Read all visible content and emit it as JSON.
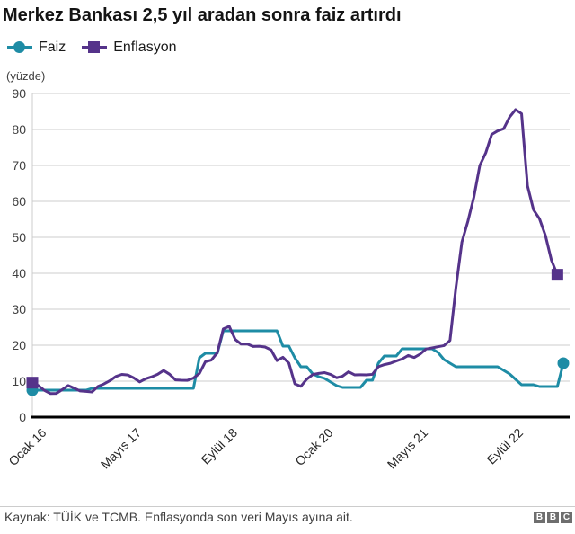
{
  "title": "Merkez Bankası 2,5 yıl aradan sonra faiz artırdı",
  "footer": {
    "source": "Kaynak: TÜİK ve TCMB. Enflasyonda son veri Mayıs ayına ait.",
    "logo": [
      "B",
      "B",
      "C"
    ]
  },
  "chart_data": {
    "type": "line",
    "title": "Merkez Bankası 2,5 yıl aradan sonra faiz artırdı",
    "ylabel": "(yüzde)",
    "xlabel": "",
    "ylim": [
      0,
      90
    ],
    "yticks": [
      0,
      10,
      20,
      30,
      40,
      50,
      60,
      70,
      80,
      90
    ],
    "grid": true,
    "grid_color": "#cccccc",
    "axis_color": "#000000",
    "legend_position": "top-left",
    "x_unit": "months from Ocak 2016 (index 0) to Haziran 2023 (index 89)",
    "xticks": [
      {
        "label": "Ocak 16",
        "month": 0
      },
      {
        "label": "Mayıs 17",
        "month": 16
      },
      {
        "label": "Eylül 18",
        "month": 32
      },
      {
        "label": "Ocak 20",
        "month": 48
      },
      {
        "label": "Mayıs 21",
        "month": 64
      },
      {
        "label": "Eylül 22",
        "month": 80
      }
    ],
    "series": [
      {
        "name": "Faiz",
        "color": "#1e8ca5",
        "marker": "circle",
        "values": [
          7.5,
          7.5,
          7.5,
          7.5,
          7.5,
          7.5,
          7.5,
          7.5,
          7.5,
          7.5,
          8,
          8,
          8,
          8,
          8,
          8,
          8,
          8,
          8,
          8,
          8,
          8,
          8,
          8,
          8,
          8,
          8,
          8,
          16.5,
          17.75,
          17.75,
          17.75,
          24,
          24,
          24,
          24,
          24,
          24,
          24,
          24,
          24,
          24,
          19.75,
          19.75,
          16.5,
          14,
          14,
          12,
          11.25,
          10.75,
          9.75,
          8.75,
          8.25,
          8.25,
          8.25,
          8.25,
          10.25,
          10.25,
          15,
          17,
          17,
          17,
          19,
          19,
          19,
          19,
          19,
          19,
          18,
          16,
          15,
          14,
          14,
          14,
          14,
          14,
          14,
          14,
          14,
          13,
          12,
          10.5,
          9,
          9,
          9,
          8.5,
          8.5,
          8.5,
          8.5,
          15
        ]
      },
      {
        "name": "Enflasyon",
        "color": "#55338a",
        "marker": "square",
        "values": [
          9.58,
          8.78,
          7.46,
          6.57,
          6.58,
          7.64,
          8.79,
          8.05,
          7.28,
          7.16,
          7.0,
          8.53,
          9.22,
          10.13,
          11.29,
          11.87,
          11.72,
          10.9,
          9.79,
          10.68,
          11.2,
          11.9,
          12.98,
          11.92,
          10.35,
          10.26,
          10.23,
          10.85,
          12.15,
          15.39,
          15.85,
          17.9,
          24.52,
          25.24,
          21.62,
          20.3,
          20.35,
          19.67,
          19.71,
          19.5,
          18.71,
          15.72,
          16.65,
          15.01,
          9.26,
          8.55,
          10.56,
          11.84,
          12.15,
          12.37,
          11.86,
          10.94,
          11.39,
          12.62,
          11.76,
          11.77,
          11.75,
          11.89,
          14.03,
          14.6,
          14.97,
          15.61,
          16.19,
          17.14,
          16.59,
          17.53,
          18.95,
          19.25,
          19.58,
          19.89,
          21.31,
          36.08,
          48.69,
          54.44,
          61.14,
          69.97,
          73.5,
          78.62,
          79.6,
          80.21,
          83.45,
          85.51,
          84.39,
          64.27,
          57.68,
          55.18,
          50.51,
          43.68,
          39.59
        ]
      }
    ]
  }
}
